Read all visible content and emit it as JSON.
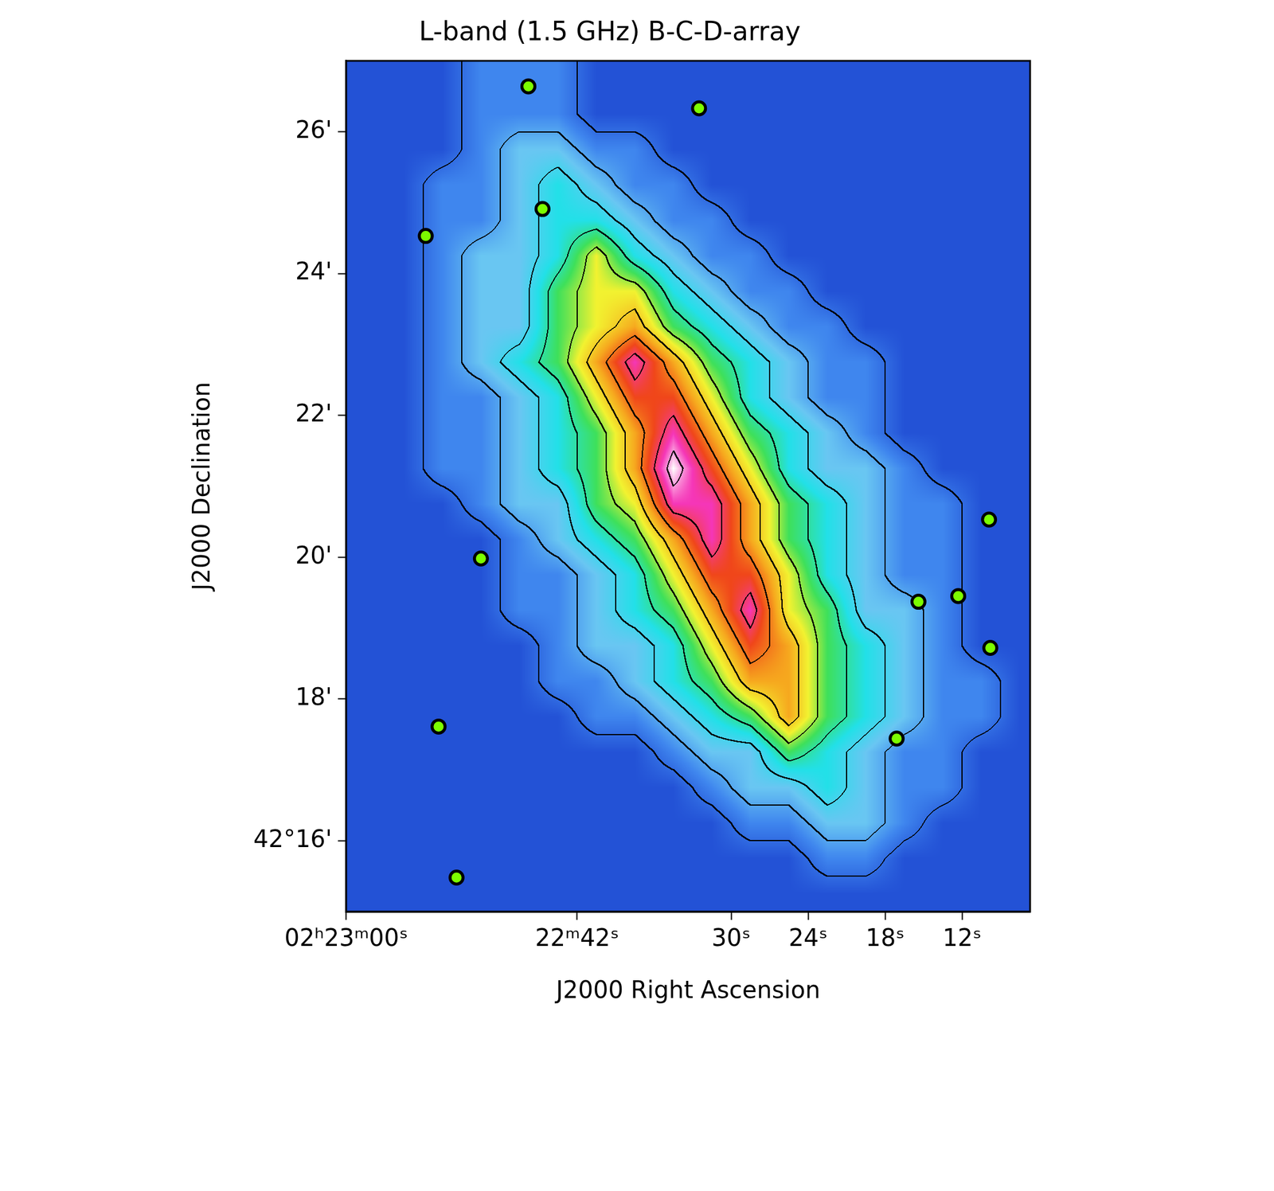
{
  "chart_data": {
    "type": "heatmap",
    "title": "L-band (1.5 GHz) B-C-D-array",
    "x_label": "J2000 Right Ascension",
    "y_label": "J2000 Declination",
    "xlim": [
      60,
      6.7
    ],
    "ylim": [
      15,
      27
    ],
    "xticks": [
      {
        "value": 60,
        "label": "02ʰ23ᵐ00ˢ"
      },
      {
        "value": 42,
        "label": "22ᵐ42ˢ"
      },
      {
        "value": 30,
        "label": "30ˢ"
      },
      {
        "value": 24,
        "label": "24ˢ"
      },
      {
        "value": 18,
        "label": "18ˢ"
      },
      {
        "value": 12,
        "label": "12ˢ"
      }
    ],
    "yticks": [
      {
        "value": 16,
        "label": "42°16'"
      },
      {
        "value": 18,
        "label": "18'"
      },
      {
        "value": 20,
        "label": "20'"
      },
      {
        "value": 22,
        "label": "22'"
      },
      {
        "value": 24,
        "label": "24'"
      },
      {
        "value": 26,
        "label": "26'"
      }
    ],
    "grid": false,
    "heatmap": {
      "x": [
        58.5,
        55.5,
        52.5,
        49.5,
        46.5,
        43.5,
        40.5,
        37.5,
        34.5,
        31.5,
        28.5,
        25.5,
        22.5,
        19.5,
        16.5,
        13.5,
        10.5,
        7.5
      ],
      "y": [
        26.75,
        26.25,
        25.75,
        25.25,
        24.75,
        24.25,
        23.75,
        23.25,
        22.75,
        22.25,
        21.75,
        21.25,
        20.75,
        20.25,
        19.75,
        19.25,
        18.75,
        18.25,
        17.75,
        17.25,
        16.75,
        16.25,
        15.75,
        15.25
      ],
      "cells": [
        [
          0,
          0,
          0,
          1,
          1,
          1,
          0,
          0,
          0,
          0,
          0,
          0,
          0,
          0,
          0,
          0,
          0,
          0
        ],
        [
          0,
          0,
          0,
          1,
          1,
          1,
          0,
          0,
          0,
          0,
          0,
          0,
          0,
          0,
          0,
          0,
          0,
          0
        ],
        [
          0,
          0,
          0,
          1,
          2,
          2,
          1,
          1,
          0,
          0,
          0,
          0,
          0,
          0,
          0,
          0,
          0,
          0
        ],
        [
          0,
          0,
          1,
          1,
          2,
          3,
          2,
          1,
          1,
          0,
          0,
          0,
          0,
          0,
          0,
          0,
          0,
          0
        ],
        [
          0,
          0,
          1,
          1,
          2,
          3,
          3,
          2,
          1,
          1,
          0,
          0,
          0,
          0,
          0,
          0,
          0,
          0
        ],
        [
          0,
          0,
          1,
          2,
          2,
          3,
          5,
          3,
          2,
          1,
          1,
          0,
          0,
          0,
          0,
          0,
          0,
          0
        ],
        [
          0,
          0,
          1,
          2,
          2,
          4,
          5,
          5,
          3,
          2,
          1,
          1,
          0,
          0,
          0,
          0,
          0,
          0
        ],
        [
          0,
          0,
          1,
          2,
          2,
          4,
          5,
          6,
          4,
          3,
          2,
          1,
          1,
          0,
          0,
          0,
          0,
          0
        ],
        [
          0,
          0,
          1,
          2,
          3,
          4,
          6,
          8,
          6,
          4,
          3,
          2,
          1,
          1,
          0,
          0,
          0,
          0
        ],
        [
          0,
          0,
          1,
          1,
          2,
          3,
          5,
          7,
          7,
          5,
          3,
          2,
          1,
          1,
          0,
          0,
          0,
          0
        ],
        [
          0,
          0,
          1,
          1,
          2,
          3,
          4,
          6,
          8,
          6,
          4,
          3,
          2,
          1,
          0,
          0,
          0,
          0
        ],
        [
          0,
          0,
          1,
          1,
          2,
          3,
          4,
          6,
          9,
          7,
          5,
          3,
          2,
          2,
          1,
          0,
          0,
          0
        ],
        [
          0,
          0,
          0,
          1,
          2,
          2,
          4,
          5,
          8,
          8,
          6,
          4,
          3,
          2,
          1,
          1,
          0,
          0
        ],
        [
          0,
          0,
          0,
          0,
          1,
          2,
          3,
          4,
          6,
          8,
          6,
          4,
          3,
          2,
          1,
          1,
          0,
          0
        ],
        [
          0,
          0,
          0,
          0,
          1,
          1,
          2,
          3,
          5,
          7,
          7,
          5,
          3,
          2,
          1,
          1,
          0,
          0
        ],
        [
          0,
          0,
          0,
          0,
          1,
          1,
          2,
          3,
          4,
          6,
          8,
          5,
          4,
          2,
          2,
          1,
          0,
          0
        ],
        [
          0,
          0,
          0,
          0,
          0,
          1,
          2,
          2,
          3,
          5,
          7,
          6,
          4,
          3,
          2,
          1,
          0,
          0
        ],
        [
          0,
          0,
          0,
          0,
          0,
          1,
          1,
          2,
          3,
          4,
          6,
          6,
          4,
          3,
          2,
          1,
          1,
          0
        ],
        [
          0,
          0,
          0,
          0,
          0,
          0,
          1,
          1,
          2,
          3,
          4,
          6,
          4,
          3,
          2,
          1,
          1,
          0
        ],
        [
          0,
          0,
          0,
          0,
          0,
          0,
          0,
          0,
          1,
          2,
          2,
          4,
          3,
          2,
          1,
          1,
          0,
          0
        ],
        [
          0,
          0,
          0,
          0,
          0,
          0,
          0,
          0,
          0,
          1,
          2,
          2,
          3,
          2,
          1,
          1,
          0,
          0
        ],
        [
          0,
          0,
          0,
          0,
          0,
          0,
          0,
          0,
          0,
          0,
          1,
          1,
          2,
          2,
          1,
          0,
          0,
          0
        ],
        [
          0,
          0,
          0,
          0,
          0,
          0,
          0,
          0,
          0,
          0,
          0,
          0,
          1,
          1,
          0,
          0,
          0,
          0
        ],
        [
          0,
          0,
          0,
          0,
          0,
          0,
          0,
          0,
          0,
          0,
          0,
          0,
          0,
          0,
          0,
          0,
          0,
          0
        ]
      ]
    },
    "series": [
      {
        "type": "scatter",
        "marker": "circle",
        "x": [
          45.8,
          32.5,
          44.7,
          53.8,
          49.5,
          15.4,
          9.9,
          9.8,
          17.1,
          52.8,
          51.4,
          12.3
        ],
        "values": [
          26.64,
          26.33,
          24.91,
          24.53,
          19.98,
          19.37,
          20.53,
          18.72,
          17.44,
          17.61,
          15.48,
          19.45
        ]
      }
    ]
  }
}
